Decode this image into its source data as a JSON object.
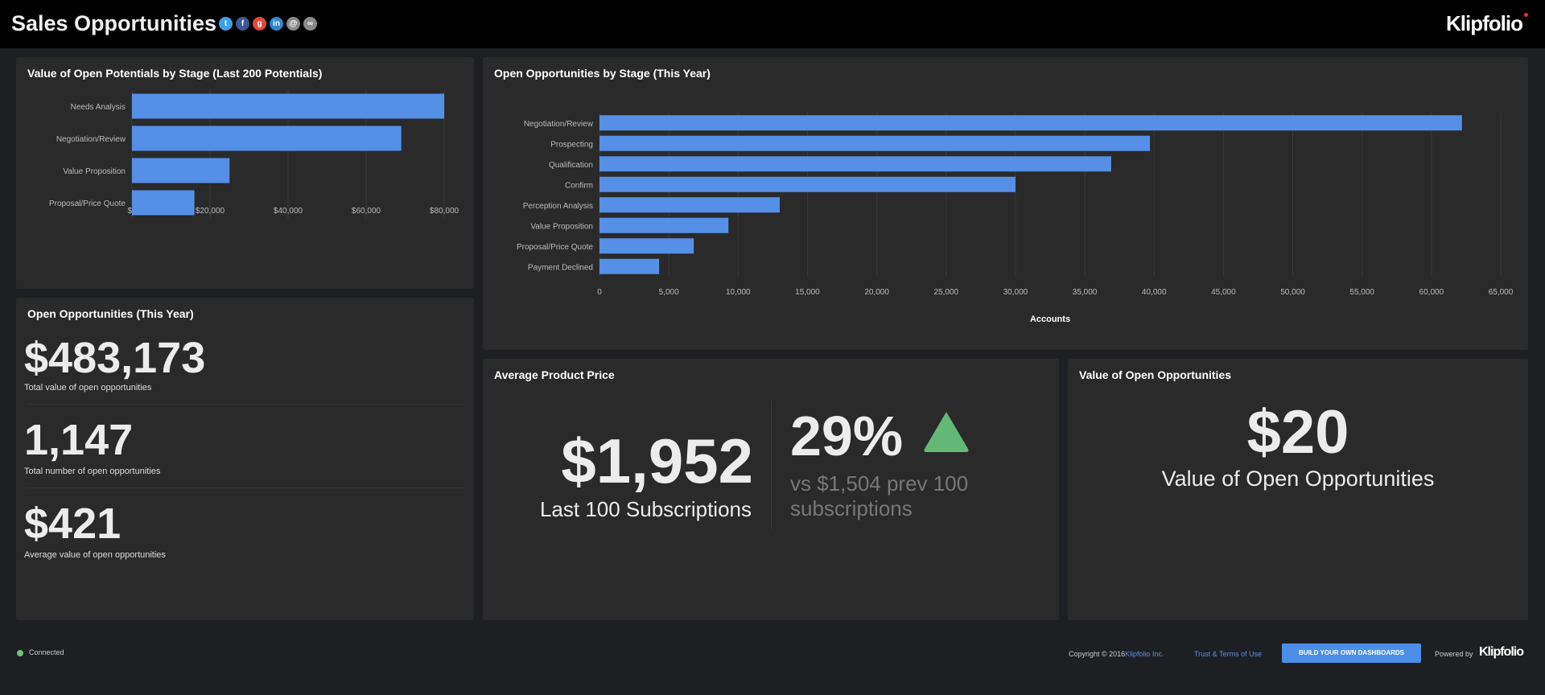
{
  "header": {
    "title": "Sales Opportunities",
    "logo": "Klipfolio",
    "share_icons": [
      {
        "name": "twitter-icon",
        "color": "#3ea0e8",
        "glyph": "t"
      },
      {
        "name": "facebook-icon",
        "color": "#3b5998",
        "glyph": "f"
      },
      {
        "name": "google-plus-icon",
        "color": "#dd4b39",
        "glyph": "g"
      },
      {
        "name": "linkedin-icon",
        "color": "#2e86c8",
        "glyph": "in"
      },
      {
        "name": "email-icon",
        "color": "#8a8a8a",
        "glyph": "@"
      },
      {
        "name": "link-icon",
        "color": "#8a8a8a",
        "glyph": "∞"
      }
    ]
  },
  "colors": {
    "bar": "#5590e6",
    "up": "#63b878",
    "link": "#5a8fe0"
  },
  "chart_data": [
    {
      "type": "bar",
      "orientation": "horizontal",
      "title": "Value of Open Potentials by Stage (Last 200 Potentials)",
      "categories": [
        "Needs Analysis",
        "Negotiation/Review",
        "Value Proposition",
        "Proposal/Price Quote"
      ],
      "values": [
        80000,
        69000,
        25000,
        16000
      ],
      "xlim": [
        0,
        80000
      ],
      "xticks": [
        "$0",
        "$20,000",
        "$40,000",
        "$60,000",
        "$80,000"
      ],
      "xlabel": "",
      "ylabel": "",
      "grid": true
    },
    {
      "type": "bar",
      "orientation": "horizontal",
      "title": "Open Opportunities by Stage (This Year)",
      "categories": [
        "Negotiation/Review",
        "Prospecting",
        "Qualification",
        "Confirm",
        "Perception Analysis",
        "Value Proposition",
        "Proposal/Price Quote",
        "Payment Declined"
      ],
      "values": [
        62200,
        39700,
        36900,
        30000,
        13000,
        9300,
        6800,
        4300
      ],
      "xlim": [
        0,
        65000
      ],
      "xticks": [
        "0",
        "5,000",
        "10,000",
        "15,000",
        "20,000",
        "25,000",
        "30,000",
        "35,000",
        "40,000",
        "45,000",
        "50,000",
        "55,000",
        "60,000",
        "65,000"
      ],
      "xlabel": "Accounts",
      "ylabel": "",
      "grid": true
    }
  ],
  "open_opps": {
    "title": "Open Opportunities (This Year)",
    "metrics": [
      {
        "value": "$483,173",
        "label": "Total value of open opportunities"
      },
      {
        "value": "1,147",
        "label": "Total number of open opportunities"
      },
      {
        "value": "$421",
        "label": "Average value of open opportunities"
      }
    ]
  },
  "avg_price": {
    "title": "Average Product Price",
    "value": "$1,952",
    "label": "Last 100 Subscriptions",
    "change": "29%",
    "trend": "up",
    "compare": "vs $1,504 prev 100 subscriptions"
  },
  "value_open": {
    "title": "Value of Open Opportunities",
    "value": "$20",
    "label": "Value of Open Opportunities"
  },
  "footer": {
    "status": "Connected",
    "copyright": "Copyright © 2016",
    "company_link": "Klipfolio Inc.",
    "terms_link": "Trust & Terms of Use",
    "cta": "BUILD YOUR OWN DASHBOARDS",
    "powered_by": "Powered by",
    "powered_logo": "Klipfolio"
  }
}
